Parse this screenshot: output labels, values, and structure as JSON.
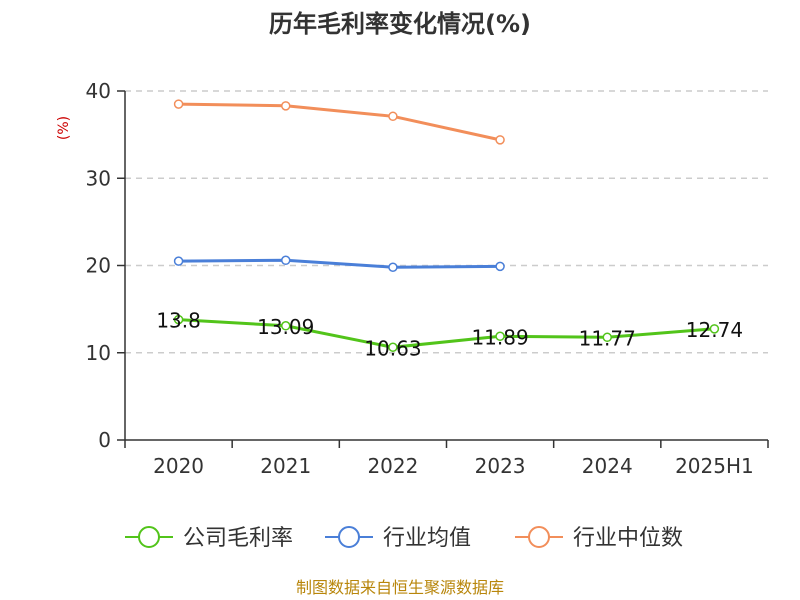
{
  "chart_data": {
    "type": "line",
    "title": "历年毛利率变化情况(%)",
    "ylabel": "(%)",
    "categories": [
      "2020",
      "2021",
      "2022",
      "2023",
      "2024",
      "2025H1"
    ],
    "ylim": [
      0,
      40
    ],
    "yticks": [
      "0",
      "10",
      "20",
      "30",
      "40"
    ],
    "grid": true,
    "legend_position": "bottom",
    "series": [
      {
        "name": "公司毛利率",
        "color": "#52c41a",
        "values": [
          13.8,
          13.09,
          10.63,
          11.89,
          11.77,
          12.74
        ],
        "labels": [
          "13.8",
          "13.09",
          "10.63",
          "11.89",
          "11.77",
          "12.74"
        ]
      },
      {
        "name": "行业均值",
        "color": "#4a7fd8",
        "values": [
          20.5,
          20.6,
          19.8,
          19.9,
          null,
          null
        ]
      },
      {
        "name": "行业中位数",
        "color": "#f28e5a",
        "values": [
          38.5,
          38.3,
          37.1,
          34.4,
          null,
          null
        ]
      }
    ],
    "source": "制图数据来自恒生聚源数据库"
  }
}
